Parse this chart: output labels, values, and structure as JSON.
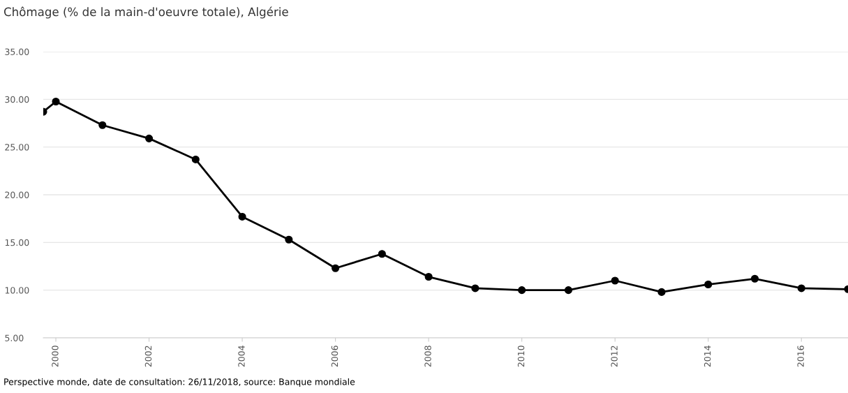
{
  "chart_data": {
    "type": "line",
    "title": "Chômage (% de la main-d'oeuvre totale), Algérie",
    "x": [
      1999.73,
      2000,
      2001,
      2002,
      2003,
      2004,
      2005,
      2006,
      2007,
      2008,
      2009,
      2010,
      2011,
      2012,
      2013,
      2014,
      2015,
      2016,
      2017
    ],
    "series": [
      {
        "color": "#000000",
        "values": [
          28.7,
          29.77,
          27.3,
          25.9,
          23.7,
          17.7,
          15.3,
          12.3,
          13.8,
          11.4,
          10.2,
          10.0,
          10.0,
          11.0,
          9.8,
          10.6,
          11.2,
          10.2,
          10.1
        ]
      }
    ],
    "xlim": [
      1999.73,
      2017
    ],
    "xticks": [
      2000,
      2002,
      2004,
      2006,
      2008,
      2010,
      2012,
      2014,
      2016
    ],
    "ylim": [
      5,
      35
    ],
    "yticks": [
      {
        "value": 5,
        "label": "5.00"
      },
      {
        "value": 10,
        "label": "10.00"
      },
      {
        "value": 15,
        "label": "15.00"
      },
      {
        "value": 20,
        "label": "20.00"
      },
      {
        "value": 25,
        "label": "25.00"
      },
      {
        "value": 30,
        "label": "30.00"
      },
      {
        "value": 35,
        "label": "35.00"
      }
    ],
    "grid": "y",
    "marker": "circle",
    "line_style": "solid",
    "legend": false,
    "annotations": [
      "Perspective monde, date de consultation: 26/11/2018, source: Banque mondiale"
    ]
  }
}
